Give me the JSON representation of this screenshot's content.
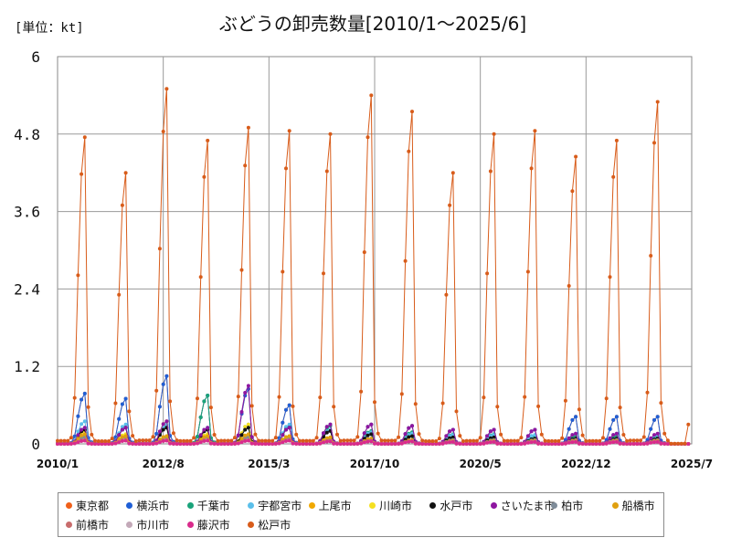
{
  "chart_data": {
    "type": "line",
    "title": "ぶどうの卸売数量[2010/1～2025/6]",
    "unit_label": "[単位：kt]",
    "ylim": [
      0,
      6
    ],
    "yticks": [
      "0",
      "1.2",
      "2.4",
      "3.6",
      "4.8",
      "6"
    ],
    "xticks": [
      {
        "label": "2010/1",
        "month_index": 0
      },
      {
        "label": "2012/8",
        "month_index": 31
      },
      {
        "label": "2015/3",
        "month_index": 62
      },
      {
        "label": "2017/10",
        "month_index": 93
      },
      {
        "label": "2020/5",
        "month_index": 124
      },
      {
        "label": "2022/12",
        "month_index": 155
      },
      {
        "label": "2025/7",
        "month_index": 186
      }
    ],
    "series": [
      {
        "name": "東京都",
        "color": "#f0601a",
        "peaks": [
          0.78,
          0.7,
          1.05,
          0.75,
          0.85,
          0.6,
          0.3,
          0.3,
          0.28,
          0.22,
          0.22,
          0.22,
          0.42,
          0.42,
          0.42,
          0.0
        ]
      },
      {
        "name": "横浜市",
        "color": "#1f5fd6",
        "peaks": [
          0.78,
          0.7,
          1.05,
          0.75,
          0.85,
          0.6,
          0.3,
          0.3,
          0.28,
          0.22,
          0.22,
          0.22,
          0.42,
          0.42,
          0.42,
          0.0
        ]
      },
      {
        "name": "千葉市",
        "color": "#1aa37a",
        "peaks": [
          0.25,
          0.25,
          0.28,
          0.75,
          0.25,
          0.28,
          0.28,
          0.2,
          0.18,
          0.15,
          0.15,
          0.12,
          0.12,
          0.12,
          0.12,
          0.0
        ]
      },
      {
        "name": "宇都宮市",
        "color": "#5bbfea",
        "peaks": [
          0.35,
          0.3,
          0.3,
          0.25,
          0.3,
          0.3,
          0.22,
          0.18,
          0.16,
          0.14,
          0.14,
          0.14,
          0.16,
          0.16,
          0.14,
          0.0
        ]
      },
      {
        "name": "上尾市",
        "color": "#f0a800",
        "peaks": [
          0.12,
          0.12,
          0.12,
          0.12,
          0.12,
          0.1,
          0.08,
          0.06,
          0.05,
          0.04,
          0.04,
          0.04,
          0.04,
          0.04,
          0.04,
          0.0
        ]
      },
      {
        "name": "川崎市",
        "color": "#f5e020",
        "peaks": [
          0.2,
          0.15,
          0.35,
          0.15,
          0.3,
          0.12,
          0.1,
          0.08,
          0.06,
          0.05,
          0.05,
          0.05,
          0.05,
          0.05,
          0.05,
          0.0
        ]
      },
      {
        "name": "水戸市",
        "color": "#111111",
        "peaks": [
          0.22,
          0.25,
          0.25,
          0.22,
          0.25,
          0.25,
          0.2,
          0.15,
          0.12,
          0.1,
          0.1,
          0.08,
          0.08,
          0.08,
          0.08,
          0.0
        ]
      },
      {
        "name": "さいたま市",
        "color": "#8e16a0",
        "peaks": [
          0.25,
          0.25,
          0.35,
          0.25,
          0.9,
          0.25,
          0.3,
          0.3,
          0.28,
          0.22,
          0.22,
          0.22,
          0.16,
          0.16,
          0.16,
          0.0
        ]
      },
      {
        "name": "柏市",
        "color": "#7f8c99",
        "peaks": [
          0.1,
          0.1,
          0.1,
          0.1,
          0.1,
          0.1,
          0.08,
          0.08,
          0.06,
          0.06,
          0.06,
          0.06,
          0.06,
          0.06,
          0.06,
          0.0
        ]
      },
      {
        "name": "船橋市",
        "color": "#e0a010",
        "peaks": [
          0.15,
          0.12,
          0.12,
          0.12,
          0.15,
          0.12,
          0.1,
          0.08,
          0.06,
          0.05,
          0.05,
          0.05,
          0.05,
          0.05,
          0.05,
          0.0
        ]
      },
      {
        "name": "前橋市",
        "color": "#c86c6c",
        "peaks": [
          0.06,
          0.06,
          0.06,
          0.06,
          0.06,
          0.06,
          0.05,
          0.05,
          0.04,
          0.04,
          0.04,
          0.04,
          0.04,
          0.04,
          0.04,
          0.0
        ]
      },
      {
        "name": "市川市",
        "color": "#c3a9b8",
        "peaks": [
          0.05,
          0.05,
          0.05,
          0.05,
          0.05,
          0.05,
          0.04,
          0.04,
          0.04,
          0.03,
          0.03,
          0.03,
          0.03,
          0.03,
          0.03,
          0.0
        ]
      },
      {
        "name": "藤沢市",
        "color": "#d92b8c",
        "peaks": [
          0.05,
          0.05,
          0.05,
          0.05,
          0.05,
          0.05,
          0.04,
          0.04,
          0.04,
          0.03,
          0.03,
          0.03,
          0.03,
          0.03,
          0.03,
          0.0
        ]
      },
      {
        "name": "松戸市",
        "color": "#d85c1a",
        "peaks": [
          4.75,
          4.2,
          5.5,
          4.7,
          4.9,
          4.85,
          4.8,
          5.4,
          5.15,
          4.2,
          4.8,
          4.85,
          4.45,
          4.7,
          5.3,
          0.3
        ]
      }
    ]
  }
}
